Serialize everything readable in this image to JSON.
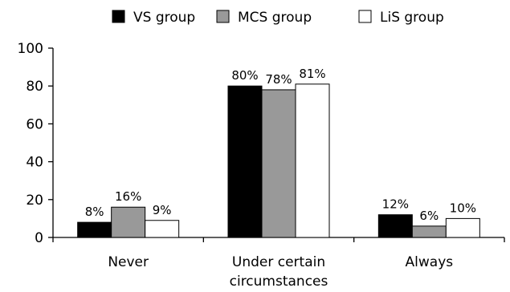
{
  "chart_data": {
    "type": "bar",
    "categories": [
      [
        "Never"
      ],
      [
        "Under certain",
        "circumstances"
      ],
      [
        "Always"
      ]
    ],
    "series": [
      {
        "name": "VS group",
        "color": "#000000",
        "values": [
          8,
          80,
          12
        ],
        "labels": [
          "8%",
          "80%",
          "12%"
        ]
      },
      {
        "name": "MCS group",
        "color": "#999999",
        "values": [
          16,
          78,
          6
        ],
        "labels": [
          "16%",
          "78%",
          "6%"
        ]
      },
      {
        "name": "LiS group",
        "color": "#ffffff",
        "values": [
          9,
          81,
          10
        ],
        "labels": [
          "9%",
          "81%",
          "10%"
        ]
      }
    ],
    "ylim": [
      0,
      100
    ],
    "yticks": [
      0,
      20,
      40,
      60,
      80,
      100
    ],
    "legend_position": "top",
    "grid": false
  }
}
